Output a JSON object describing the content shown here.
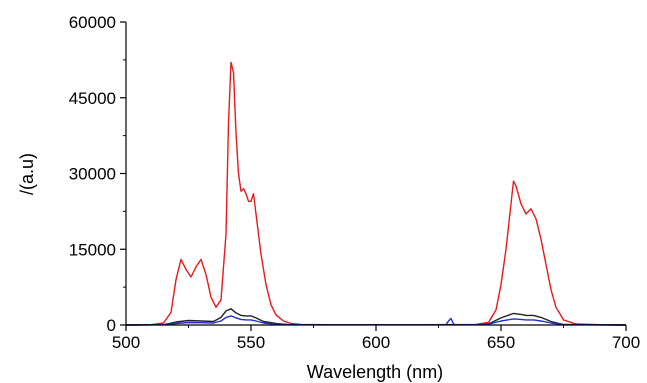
{
  "chart_data": {
    "type": "line",
    "xlabel": "Wavelength (nm)",
    "ylabel": "/(a.u)",
    "xlim": [
      500,
      700
    ],
    "ylim": [
      0,
      60000
    ],
    "xticks": [
      500,
      550,
      600,
      650,
      700
    ],
    "yticks": [
      0,
      15000,
      30000,
      45000,
      60000
    ],
    "grid": false,
    "legend": "none",
    "series": [
      {
        "color": "#e8191b",
        "x": [
          500,
          510,
          515,
          518,
          520,
          522,
          524,
          526,
          528,
          530,
          532,
          534,
          536,
          538,
          540,
          541,
          542,
          543,
          544,
          545,
          546,
          547,
          548,
          549,
          550,
          551,
          552,
          554,
          556,
          558,
          560,
          563,
          566,
          570,
          580,
          600,
          620,
          640,
          645,
          648,
          650,
          652,
          654,
          655,
          656,
          658,
          660,
          662,
          664,
          666,
          668,
          670,
          672,
          675,
          680,
          690,
          700
        ],
        "y": [
          0,
          50,
          400,
          2500,
          9000,
          13000,
          11000,
          9500,
          11500,
          13000,
          10000,
          5500,
          3500,
          5000,
          18000,
          40000,
          52000,
          50000,
          38000,
          30000,
          26500,
          27000,
          26000,
          24500,
          24500,
          26000,
          22000,
          14000,
          8000,
          4000,
          2000,
          800,
          300,
          100,
          50,
          50,
          50,
          100,
          500,
          3000,
          8000,
          15000,
          24000,
          28500,
          27500,
          24000,
          22000,
          23000,
          21000,
          17000,
          12000,
          7000,
          3500,
          1000,
          200,
          50,
          0
        ]
      },
      {
        "color": "#222222",
        "x": [
          500,
          515,
          520,
          525,
          530,
          535,
          538,
          540,
          542,
          544,
          546,
          548,
          550,
          552,
          555,
          560,
          565,
          600,
          640,
          645,
          650,
          655,
          658,
          660,
          663,
          666,
          670,
          675,
          700
        ],
        "y": [
          0,
          50,
          600,
          900,
          800,
          700,
          1500,
          2800,
          3200,
          2400,
          1900,
          1800,
          1800,
          1400,
          700,
          300,
          80,
          50,
          50,
          200,
          1400,
          2300,
          2100,
          1900,
          1900,
          1500,
          700,
          100,
          0
        ]
      },
      {
        "color": "#1f2fd4",
        "x": [
          500,
          515,
          520,
          525,
          530,
          535,
          538,
          540,
          542,
          544,
          546,
          548,
          550,
          552,
          555,
          560,
          565,
          600,
          628,
          629,
          630,
          631,
          632,
          640,
          645,
          650,
          655,
          658,
          660,
          663,
          666,
          670,
          675,
          700
        ],
        "y": [
          0,
          30,
          300,
          500,
          450,
          400,
          800,
          1500,
          1800,
          1400,
          1100,
          1000,
          1000,
          800,
          400,
          150,
          50,
          30,
          50,
          800,
          1300,
          200,
          40,
          40,
          150,
          800,
          1200,
          1100,
          1000,
          1000,
          800,
          400,
          60,
          0
        ]
      }
    ]
  }
}
